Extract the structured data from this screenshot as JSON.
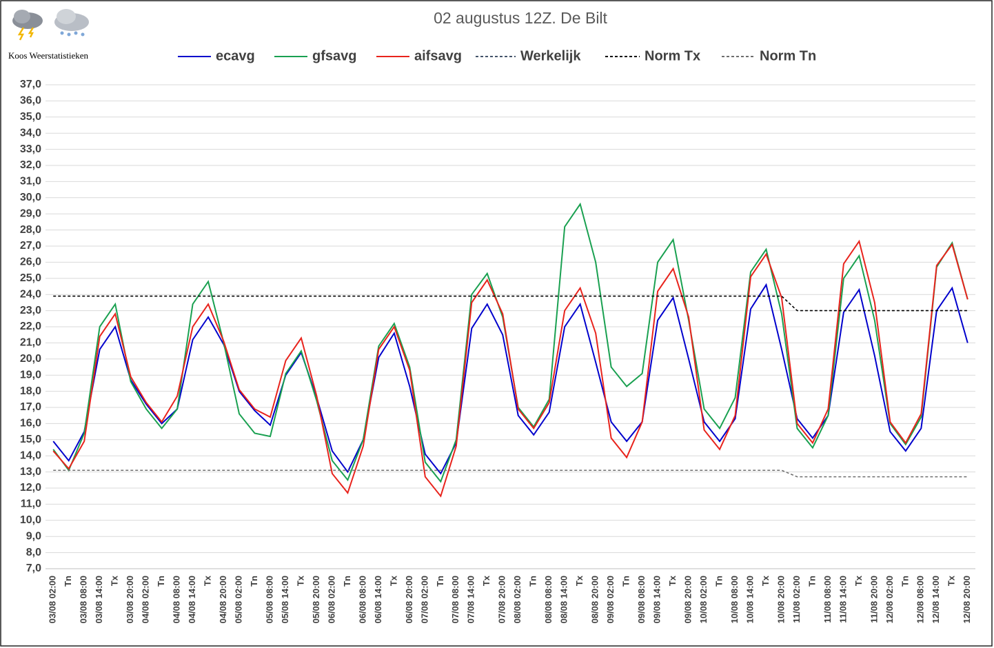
{
  "chart_data": {
    "type": "line",
    "title": "02 augustus 12Z. De Bilt",
    "source": "Koos Weerstatistieken",
    "categories": [
      "03/08 02:00",
      "Tn",
      "03/08 08:00",
      "03/08 14:00",
      "Tx",
      "03/08 20:00",
      "04/08 02:00",
      "Tn",
      "04/08 08:00",
      "04/08 14:00",
      "Tx",
      "04/08 20:00",
      "05/08 02:00",
      "Tn",
      "05/08 08:00",
      "05/08 14:00",
      "Tx",
      "05/08 20:00",
      "06/08 02:00",
      "Tn",
      "06/08 08:00",
      "06/08 14:00",
      "Tx",
      "06/08 20:00",
      "07/08 02:00",
      "Tn",
      "07/08 08:00",
      "07/08 14:00",
      "Tx",
      "07/08 20:00",
      "08/08 02:00",
      "Tn",
      "08/08 08:00",
      "08/08 14:00",
      "Tx",
      "08/08 20:00",
      "09/08 02:00",
      "Tn",
      "09/08 08:00",
      "09/08 14:00",
      "Tx",
      "09/08 20:00",
      "10/08 02:00",
      "Tn",
      "10/08 08:00",
      "10/08 14:00",
      "Tx",
      "10/08 20:00",
      "11/08 02:00",
      "Tn",
      "11/08 08:00",
      "11/08 14:00",
      "Tx",
      "11/08 20:00",
      "12/08 02:00",
      "Tn",
      "12/08 08:00",
      "12/08 14:00",
      "Tx",
      "12/08 20:00"
    ],
    "series": [
      {
        "name": "ecavg",
        "color": "#0000cc",
        "dashed": false,
        "values": [
          14.9,
          13.7,
          15.5,
          20.6,
          22.0,
          18.7,
          17.2,
          16.0,
          16.9,
          21.2,
          22.6,
          20.9,
          18.0,
          16.8,
          15.9,
          19.0,
          20.4,
          17.6,
          14.3,
          13.0,
          15.0,
          20.1,
          21.6,
          18.3,
          14.1,
          12.9,
          14.8,
          21.9,
          23.4,
          21.5,
          16.5,
          15.3,
          16.7,
          22.0,
          23.4,
          19.8,
          16.1,
          14.9,
          16.1,
          22.4,
          23.8,
          20.0,
          16.1,
          14.9,
          16.3,
          23.1,
          24.6,
          20.6,
          16.3,
          15.1,
          16.5,
          22.9,
          24.3,
          20.2,
          15.5,
          14.3,
          15.7,
          23.0,
          24.4,
          21.0
        ]
      },
      {
        "name": "gfsavg",
        "color": "#19a050",
        "dashed": false,
        "values": [
          14.4,
          13.1,
          15.4,
          22.0,
          23.4,
          18.6,
          16.9,
          15.7,
          16.9,
          23.4,
          24.8,
          21.0,
          16.6,
          15.4,
          15.2,
          19.1,
          20.5,
          17.4,
          13.7,
          12.5,
          15.0,
          20.8,
          22.2,
          19.5,
          13.6,
          12.4,
          15.0,
          24.0,
          25.3,
          22.6,
          17.0,
          15.8,
          17.5,
          28.2,
          29.6,
          26.0,
          19.5,
          18.3,
          19.1,
          26.0,
          27.4,
          22.4,
          16.9,
          15.7,
          17.6,
          25.4,
          26.8,
          22.8,
          15.7,
          14.5,
          16.5,
          25.0,
          26.4,
          22.4,
          16.0,
          14.7,
          16.4,
          25.7,
          27.2,
          23.7
        ]
      },
      {
        "name": "aifsavg",
        "color": "#e8231c",
        "dashed": false,
        "values": [
          14.3,
          13.2,
          14.9,
          21.4,
          22.8,
          18.9,
          17.3,
          16.1,
          17.7,
          22.0,
          23.4,
          21.1,
          18.1,
          16.9,
          16.4,
          19.9,
          21.3,
          17.7,
          12.9,
          11.7,
          14.6,
          20.6,
          22.0,
          19.3,
          12.7,
          11.5,
          14.6,
          23.5,
          24.9,
          22.8,
          16.9,
          15.7,
          17.3,
          23.0,
          24.4,
          21.6,
          15.1,
          13.9,
          16.1,
          24.2,
          25.6,
          22.6,
          15.6,
          14.4,
          16.5,
          25.1,
          26.5,
          23.8,
          16.0,
          14.8,
          16.9,
          25.9,
          27.3,
          23.5,
          16.1,
          14.8,
          16.6,
          25.8,
          27.1,
          23.7
        ]
      },
      {
        "name": "Werkelijk",
        "color": "#44546a",
        "dashed": true,
        "values": [
          null,
          null,
          null,
          null,
          null,
          null,
          null,
          null,
          null,
          null,
          null,
          null,
          null,
          null,
          null,
          null,
          null,
          null,
          null,
          null,
          null,
          null,
          null,
          null,
          null,
          null,
          null,
          null,
          null,
          null,
          null,
          null,
          null,
          null,
          null,
          null,
          null,
          null,
          null,
          null,
          null,
          null,
          null,
          null,
          null,
          null,
          null,
          null,
          null,
          null,
          null,
          null,
          null,
          null,
          null,
          null,
          null,
          null,
          null,
          null
        ]
      },
      {
        "name": "Norm Tx",
        "color": "#000000",
        "dashed": true,
        "values": [
          23.9,
          23.9,
          23.9,
          23.9,
          23.9,
          23.9,
          23.9,
          23.9,
          23.9,
          23.9,
          23.9,
          23.9,
          23.9,
          23.9,
          23.9,
          23.9,
          23.9,
          23.9,
          23.9,
          23.9,
          23.9,
          23.9,
          23.9,
          23.9,
          23.9,
          23.9,
          23.9,
          23.9,
          23.9,
          23.9,
          23.9,
          23.9,
          23.9,
          23.9,
          23.9,
          23.9,
          23.9,
          23.9,
          23.9,
          23.9,
          23.9,
          23.9,
          23.9,
          23.9,
          23.9,
          23.9,
          23.9,
          23.9,
          23.0,
          23.0,
          23.0,
          23.0,
          23.0,
          23.0,
          23.0,
          23.0,
          23.0,
          23.0,
          23.0,
          23.0
        ]
      },
      {
        "name": "Norm Tn",
        "color": "#6e6e6e",
        "dashed": true,
        "values": [
          13.1,
          13.1,
          13.1,
          13.1,
          13.1,
          13.1,
          13.1,
          13.1,
          13.1,
          13.1,
          13.1,
          13.1,
          13.1,
          13.1,
          13.1,
          13.1,
          13.1,
          13.1,
          13.1,
          13.1,
          13.1,
          13.1,
          13.1,
          13.1,
          13.1,
          13.1,
          13.1,
          13.1,
          13.1,
          13.1,
          13.1,
          13.1,
          13.1,
          13.1,
          13.1,
          13.1,
          13.1,
          13.1,
          13.1,
          13.1,
          13.1,
          13.1,
          13.1,
          13.1,
          13.1,
          13.1,
          13.1,
          13.1,
          12.7,
          12.7,
          12.7,
          12.7,
          12.7,
          12.7,
          12.7,
          12.7,
          12.7,
          12.7,
          12.7,
          12.7
        ]
      }
    ],
    "ylim": [
      7,
      37
    ],
    "yticks": [
      {
        "value": 7,
        "label": "7,0"
      },
      {
        "value": 8,
        "label": "8,0"
      },
      {
        "value": 9,
        "label": "9,0"
      },
      {
        "value": 10,
        "label": "10,0"
      },
      {
        "value": 11,
        "label": "11,0"
      },
      {
        "value": 12,
        "label": "12,0"
      },
      {
        "value": 13,
        "label": "13,0"
      },
      {
        "value": 14,
        "label": "14,0"
      },
      {
        "value": 15,
        "label": "15,0"
      },
      {
        "value": 16,
        "label": "16,0"
      },
      {
        "value": 17,
        "label": "17,0"
      },
      {
        "value": 18,
        "label": "18,0"
      },
      {
        "value": 19,
        "label": "19,0"
      },
      {
        "value": 20,
        "label": "20,0"
      },
      {
        "value": 21,
        "label": "21,0"
      },
      {
        "value": 22,
        "label": "22,0"
      },
      {
        "value": 23,
        "label": "23,0"
      },
      {
        "value": 24,
        "label": "24,0"
      },
      {
        "value": 25,
        "label": "25,0"
      },
      {
        "value": 26,
        "label": "26,0"
      },
      {
        "value": 27,
        "label": "27,0"
      },
      {
        "value": 28,
        "label": "28,0"
      },
      {
        "value": 29,
        "label": "29,0"
      },
      {
        "value": 30,
        "label": "30,0"
      },
      {
        "value": 31,
        "label": "31,0"
      },
      {
        "value": 32,
        "label": "32,0"
      },
      {
        "value": 33,
        "label": "33,0"
      },
      {
        "value": 34,
        "label": "34,0"
      },
      {
        "value": 35,
        "label": "35,0"
      },
      {
        "value": 36,
        "label": "36,0"
      },
      {
        "value": 37,
        "label": "37,0"
      }
    ],
    "grid": true,
    "legend": "top"
  }
}
